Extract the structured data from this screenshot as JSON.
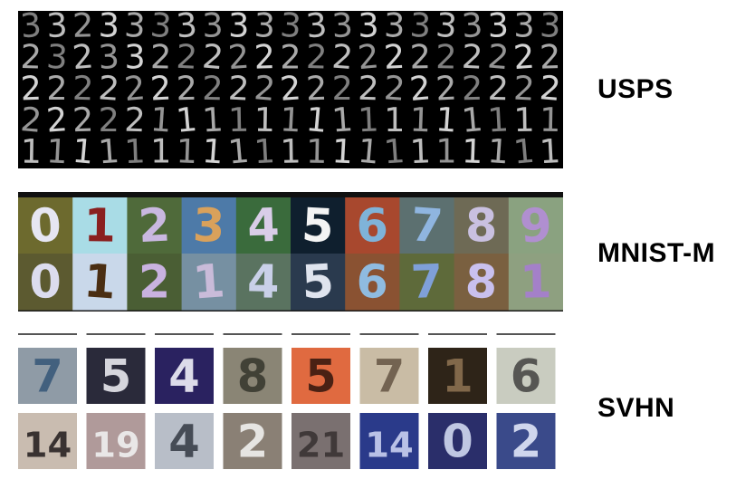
{
  "labels": {
    "usps": "USPS",
    "mnistm": "MNIST-M",
    "svhn": "SVHN"
  },
  "usps": {
    "rows": [
      [
        "3",
        "3",
        "2",
        "3",
        "3",
        "3",
        "3",
        "3",
        "3",
        "3",
        "3",
        "3",
        "3",
        "3",
        "3",
        "3",
        "3",
        "3",
        "3",
        "3",
        "3"
      ],
      [
        "2",
        "3",
        "2",
        "3",
        "3",
        "2",
        "2",
        "2",
        "2",
        "2",
        "2",
        "2",
        "2",
        "2",
        "2",
        "2",
        "2",
        "2",
        "2",
        "2",
        "2"
      ],
      [
        "2",
        "2",
        "2",
        "2",
        "2",
        "2",
        "2",
        "2",
        "2",
        "2",
        "2",
        "2",
        "2",
        "2",
        "2",
        "2",
        "2",
        "2",
        "2",
        "2",
        "2"
      ],
      [
        "2",
        "2",
        "2",
        "2",
        "2",
        "1",
        "1",
        "1",
        "1",
        "1",
        "1",
        "1",
        "1",
        "1",
        "1",
        "1",
        "1",
        "1",
        "1",
        "1",
        "1"
      ],
      [
        "1",
        "1",
        "1",
        "1",
        "1",
        "1",
        "1",
        "1",
        "1",
        "1",
        "1",
        "1",
        "1",
        "1",
        "1",
        "1",
        "1",
        "1",
        "1",
        "1",
        "1"
      ]
    ]
  },
  "mnistm": {
    "row1": [
      {
        "d": "0",
        "bg": "#6d6a2e",
        "fg": "#e6e6f2"
      },
      {
        "d": "1",
        "bg": "#a9dce6",
        "fg": "#8a1f1f"
      },
      {
        "d": "2",
        "bg": "#4f6a3a",
        "fg": "#c9b8e0"
      },
      {
        "d": "3",
        "bg": "#4d7aa8",
        "fg": "#d9a15b"
      },
      {
        "d": "4",
        "bg": "#3a6b3c",
        "fg": "#d9cde8"
      },
      {
        "d": "5",
        "bg": "#0f1f2e",
        "fg": "#f4f4f4"
      },
      {
        "d": "6",
        "bg": "#a8482e",
        "fg": "#7fb3d9"
      },
      {
        "d": "7",
        "bg": "#5c7070",
        "fg": "#8fb5e0"
      },
      {
        "d": "8",
        "bg": "#6e6a55",
        "fg": "#c9c0e0"
      },
      {
        "d": "9",
        "bg": "#8aa280",
        "fg": "#b08fd0"
      }
    ],
    "row2": [
      {
        "d": "0",
        "bg": "#5c5a30",
        "fg": "#dcdcee"
      },
      {
        "d": "1",
        "bg": "#c9d8ea",
        "fg": "#4a2e12"
      },
      {
        "d": "2",
        "bg": "#4a5e34",
        "fg": "#c9b2e0"
      },
      {
        "d": "1",
        "bg": "#7690a2",
        "fg": "#c9bbd9"
      },
      {
        "d": "4",
        "bg": "#5a7360",
        "fg": "#c9d0e8"
      },
      {
        "d": "5",
        "bg": "#2a3a4e",
        "fg": "#dfe4ee"
      },
      {
        "d": "6",
        "bg": "#8a5232",
        "fg": "#8fbbe0"
      },
      {
        "d": "7",
        "bg": "#5e6a3a",
        "fg": "#7fa0d9"
      },
      {
        "d": "8",
        "bg": "#7a6040",
        "fg": "#c9c0ee"
      },
      {
        "d": "1",
        "bg": "#8ea080",
        "fg": "#a480c9"
      }
    ]
  },
  "svhn": {
    "row1": [
      {
        "d": "7",
        "bg": "#8f9ba6",
        "fg": "#3a5a7a"
      },
      {
        "d": "5",
        "bg": "#2a2a3a",
        "fg": "#e8e8ee"
      },
      {
        "d": "4",
        "bg": "#2a2260",
        "fg": "#f0f0f8"
      },
      {
        "d": "8",
        "bg": "#8a8575",
        "fg": "#3a3a30"
      },
      {
        "d": "5",
        "bg": "#e06a40",
        "fg": "#3a1a10"
      },
      {
        "d": "7",
        "bg": "#c9bca5",
        "fg": "#6a5a48"
      },
      {
        "d": "1",
        "bg": "#2e2418",
        "fg": "#8a7050"
      },
      {
        "d": "6",
        "bg": "#c9ccc0",
        "fg": "#4a4a48"
      }
    ],
    "row2": [
      {
        "d": "14",
        "bg": "#c9bcb0",
        "fg": "#2a2424"
      },
      {
        "d": "19",
        "bg": "#b09a9a",
        "fg": "#f0f0f0"
      },
      {
        "d": "4",
        "bg": "#b8bec8",
        "fg": "#3a404a"
      },
      {
        "d": "2",
        "bg": "#8a8075",
        "fg": "#f0f0ee"
      },
      {
        "d": "21",
        "bg": "#7a7070",
        "fg": "#3a3434"
      },
      {
        "d": "14",
        "bg": "#2a3a8a",
        "fg": "#c9d0f0"
      },
      {
        "d": "0",
        "bg": "#2a2e6a",
        "fg": "#d0d8f0"
      },
      {
        "d": "2",
        "bg": "#3a4a8a",
        "fg": "#e0e6f8"
      }
    ]
  }
}
